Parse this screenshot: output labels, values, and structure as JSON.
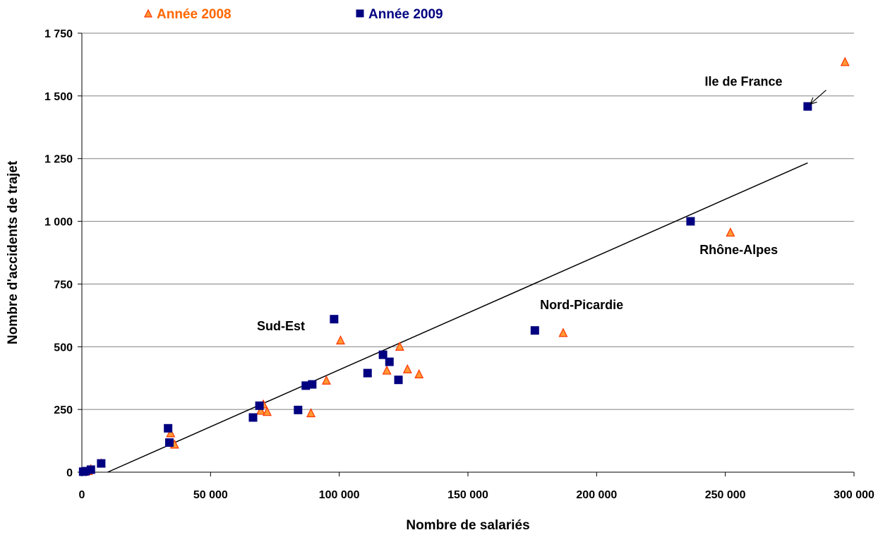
{
  "chart_data": {
    "type": "scatter",
    "xlabel": "Nombre de salariés",
    "ylabel": "Nombre d'accidents de trajet",
    "xlim": [
      0,
      300000
    ],
    "ylim": [
      0,
      1750
    ],
    "x_ticks": [
      0,
      50000,
      100000,
      150000,
      200000,
      250000,
      300000
    ],
    "x_tick_labels": [
      "0",
      "50 000",
      "100 000",
      "150 000",
      "200 000",
      "250 000",
      "300 000"
    ],
    "y_ticks": [
      0,
      250,
      500,
      750,
      1000,
      1250,
      1500,
      1750
    ],
    "y_tick_labels": [
      "0",
      "250",
      "500",
      "750",
      "1 000",
      "1 250",
      "1 500",
      "1 750"
    ],
    "grid": "horizontal",
    "legend_position": "top-left",
    "series": [
      {
        "name": "Année 2008",
        "marker": "triangle",
        "color": "#ff3300",
        "fill": "#ff9933",
        "points": [
          [
            1000,
            2
          ],
          [
            2500,
            5
          ],
          [
            3500,
            12
          ],
          [
            7500,
            35
          ],
          [
            34500,
            155
          ],
          [
            36000,
            110
          ],
          [
            69500,
            245
          ],
          [
            70500,
            270
          ],
          [
            72000,
            240
          ],
          [
            89000,
            235
          ],
          [
            95000,
            365
          ],
          [
            100500,
            525
          ],
          [
            118500,
            405
          ],
          [
            123500,
            500
          ],
          [
            126500,
            410
          ],
          [
            131000,
            390
          ],
          [
            187000,
            555
          ],
          [
            252000,
            955
          ],
          [
            296500,
            1635
          ]
        ]
      },
      {
        "name": "Année 2009",
        "marker": "square",
        "color": "#000080",
        "fill": "#000080",
        "points": [
          [
            500,
            2
          ],
          [
            1500,
            4
          ],
          [
            3500,
            10
          ],
          [
            7500,
            35
          ],
          [
            33500,
            175
          ],
          [
            34000,
            118
          ],
          [
            66500,
            218
          ],
          [
            69000,
            265
          ],
          [
            84000,
            248
          ],
          [
            87000,
            345
          ],
          [
            89500,
            350
          ],
          [
            98000,
            610
          ],
          [
            111000,
            395
          ],
          [
            117000,
            468
          ],
          [
            119500,
            440
          ],
          [
            123000,
            368
          ],
          [
            176000,
            565
          ],
          [
            236500,
            1000
          ],
          [
            282000,
            1458
          ]
        ]
      }
    ],
    "trendline": {
      "x1": 10000,
      "y1": 0,
      "x2": 282000,
      "y2": 1233
    },
    "annotations": [
      {
        "text": "Ile de France",
        "x": 242000,
        "y": 1540,
        "anchor": "start",
        "arrow_to": [
          283000,
          1490
        ]
      },
      {
        "text": "Rhône-Alpes",
        "x": 240000,
        "y": 870,
        "anchor": "start"
      },
      {
        "text": "Nord-Picardie",
        "x": 178000,
        "y": 650,
        "anchor": "start"
      },
      {
        "text": "Sud-Est",
        "x": 68000,
        "y": 565,
        "anchor": "start"
      }
    ]
  }
}
